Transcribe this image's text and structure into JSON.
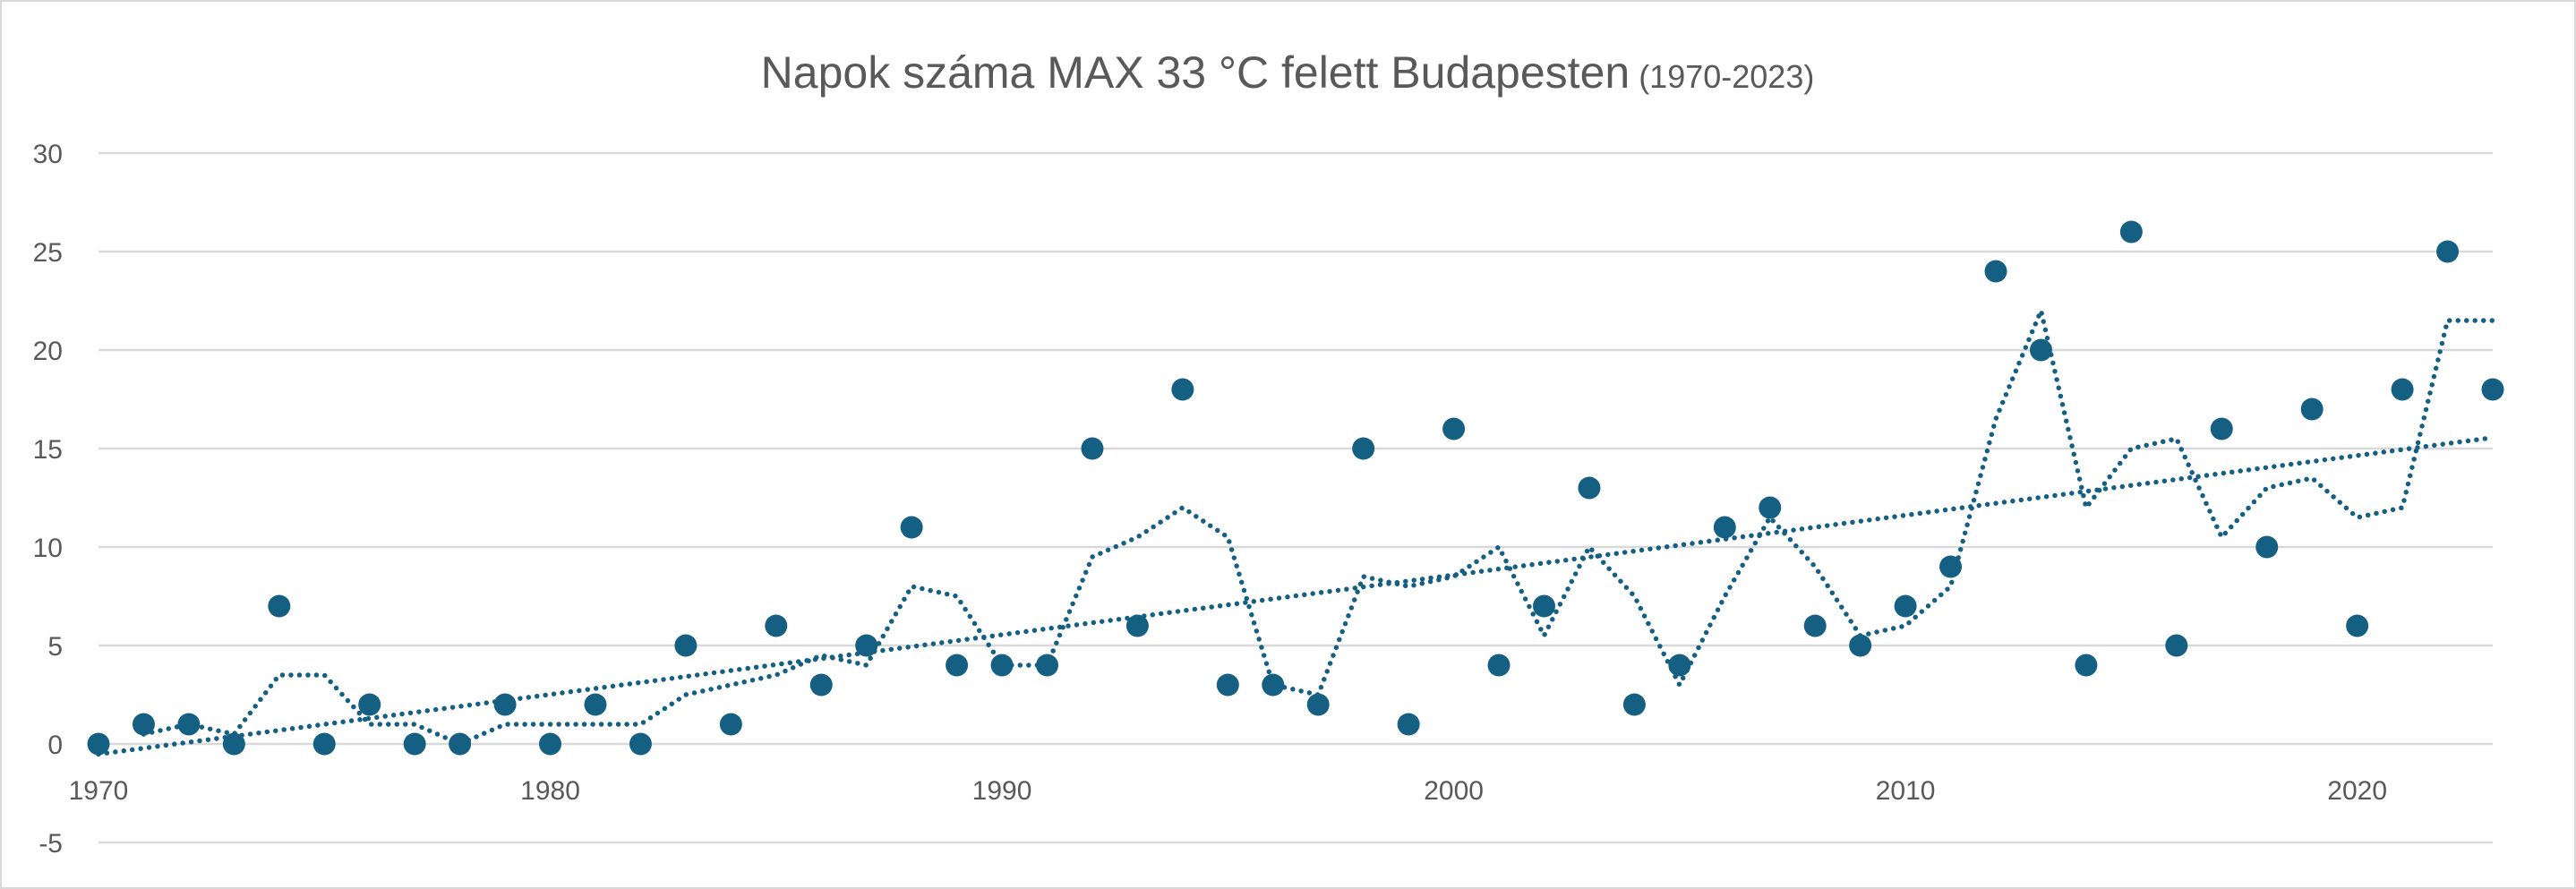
{
  "chart_data": {
    "type": "scatter",
    "title": "Napok száma MAX 33 °C felett Budapesten",
    "subtitle": "(1970-2023)",
    "xlabel": "",
    "ylabel": "",
    "xlim": [
      1970,
      2023
    ],
    "ylim": [
      -5,
      30
    ],
    "x_ticks": [
      "1970",
      "1980",
      "1990",
      "2000",
      "2010",
      "2020"
    ],
    "y_ticks": [
      "30",
      "25",
      "20",
      "15",
      "10",
      "5",
      "0",
      "-5"
    ],
    "grid": true,
    "legend": "none",
    "x": [
      1970,
      1971,
      1972,
      1973,
      1974,
      1975,
      1976,
      1977,
      1978,
      1979,
      1980,
      1981,
      1982,
      1983,
      1984,
      1985,
      1986,
      1987,
      1988,
      1989,
      1990,
      1991,
      1992,
      1993,
      1994,
      1995,
      1996,
      1997,
      1998,
      1999,
      2000,
      2001,
      2002,
      2003,
      2004,
      2005,
      2006,
      2007,
      2008,
      2009,
      2010,
      2011,
      2012,
      2013,
      2014,
      2015,
      2016,
      2017,
      2018,
      2019,
      2020,
      2021,
      2022,
      2023
    ],
    "values": [
      0,
      1,
      1,
      0,
      7,
      0,
      2,
      0,
      0,
      2,
      0,
      2,
      0,
      5,
      1,
      6,
      3,
      5,
      11,
      4,
      4,
      4,
      15,
      6,
      18,
      3,
      3,
      2,
      15,
      1,
      16,
      4,
      7,
      13,
      2,
      4,
      11,
      12,
      6,
      5,
      7,
      9,
      24,
      20,
      4,
      26,
      5,
      16,
      10,
      17,
      6,
      18,
      25,
      18
    ],
    "trendlines": [
      {
        "type": "moving-average",
        "period": 2,
        "style": "dotted"
      },
      {
        "type": "linear",
        "style": "dotted"
      }
    ],
    "colors": {
      "marker": "#156082",
      "grid": "#d9d9d9",
      "text": "#595959"
    }
  }
}
